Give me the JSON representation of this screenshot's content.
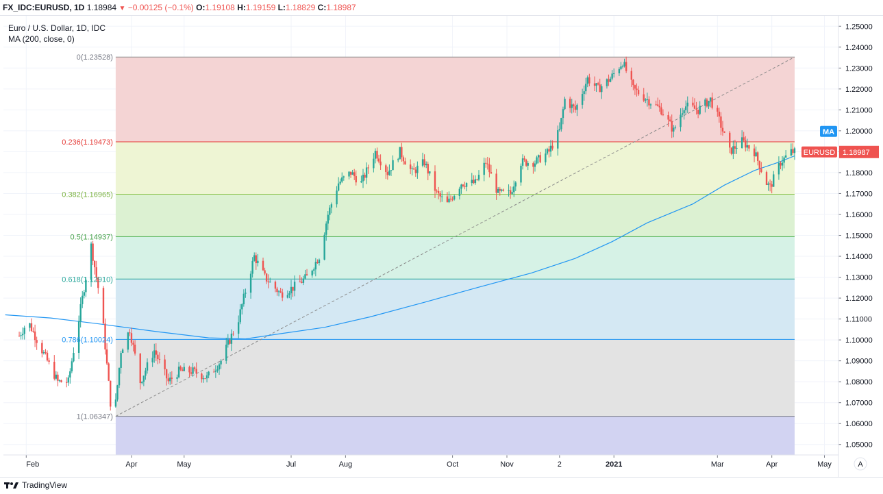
{
  "header": {
    "symbol": "FX_IDC:EURUSD, 1D",
    "last": "1.18984",
    "change_icon": "triangle-down-icon",
    "change": "−0.00125 (−0.1%)",
    "o_label": "O:",
    "o": "1.19108",
    "h_label": "H:",
    "h": "1.19159",
    "l_label": "L:",
    "l": "1.18829",
    "c_label": "C:",
    "c": "1.18987"
  },
  "legend": {
    "title": "Euro / U.S. Dollar, 1D, IDC",
    "indicator": "MA (200, close, 0)"
  },
  "footer": {
    "brand": "TradingView"
  },
  "scale_mode": "A",
  "colors": {
    "up": "#26a69a",
    "down": "#ef5350",
    "ma": "#2196f3",
    "fib_0": "#f4d4d4",
    "fib_236": "#eef5d4",
    "fib_382": "#dcf1d2",
    "fib_5": "#d6f2e6",
    "fib_618": "#d4e8f3",
    "fib_786": "#e3e3e3",
    "fib_1": "#d2d3f2"
  },
  "chart_data": {
    "type": "candlestick",
    "symbol": "EURUSD",
    "interval": "1D",
    "ylim": [
      1.045,
      1.255
    ],
    "y_ticks": [
      "1.05000",
      "1.06000",
      "1.07000",
      "1.08000",
      "1.09000",
      "1.10000",
      "1.11000",
      "1.12000",
      "1.13000",
      "1.14000",
      "1.15000",
      "1.16000",
      "1.17000",
      "1.18000",
      "1.19000",
      "1.20000",
      "1.21000",
      "1.22000",
      "1.23000",
      "1.24000",
      "1.25000"
    ],
    "x_ticks": [
      {
        "label": "Feb",
        "date": "2020-02-01"
      },
      {
        "label": "Apr",
        "date": "2020-04-01"
      },
      {
        "label": "May",
        "date": "2020-05-01"
      },
      {
        "label": "Jul",
        "date": "2020-07-01"
      },
      {
        "label": "Aug",
        "date": "2020-08-01"
      },
      {
        "label": "Oct",
        "date": "2020-10-01"
      },
      {
        "label": "Nov",
        "date": "2020-11-01"
      },
      {
        "label": "2",
        "date": "2020-12-01"
      },
      {
        "label": "2021",
        "date": "2021-01-01"
      },
      {
        "label": "Mar",
        "date": "2021-03-01"
      },
      {
        "label": "Apr",
        "date": "2021-04-01"
      },
      {
        "label": "May",
        "date": "2021-05-01"
      }
    ],
    "price_path": [
      [
        "2020-01-28",
        1.102
      ],
      [
        "2020-02-02",
        1.109
      ],
      [
        "2020-02-10",
        1.095
      ],
      [
        "2020-02-19",
        1.08
      ],
      [
        "2020-02-25",
        1.08
      ],
      [
        "2020-03-03",
        1.115
      ],
      [
        "2020-03-09",
        1.145
      ],
      [
        "2020-03-15",
        1.115
      ],
      [
        "2020-03-20",
        1.07
      ],
      [
        "2020-03-23",
        1.07
      ],
      [
        "2020-03-26",
        1.095
      ],
      [
        "2020-03-31",
        1.105
      ],
      [
        "2020-04-06",
        1.08
      ],
      [
        "2020-04-14",
        1.095
      ],
      [
        "2020-04-22",
        1.08
      ],
      [
        "2020-04-28",
        1.085
      ],
      [
        "2020-05-06",
        1.085
      ],
      [
        "2020-05-14",
        1.082
      ],
      [
        "2020-05-22",
        1.09
      ],
      [
        "2020-06-01",
        1.11
      ],
      [
        "2020-06-10",
        1.14
      ],
      [
        "2020-06-16",
        1.13
      ],
      [
        "2020-06-25",
        1.122
      ],
      [
        "2020-07-02",
        1.125
      ],
      [
        "2020-07-10",
        1.13
      ],
      [
        "2020-07-17",
        1.14
      ],
      [
        "2020-07-22",
        1.16
      ],
      [
        "2020-07-28",
        1.175
      ],
      [
        "2020-08-04",
        1.18
      ],
      [
        "2020-08-10",
        1.175
      ],
      [
        "2020-08-18",
        1.19
      ],
      [
        "2020-08-25",
        1.18
      ],
      [
        "2020-09-01",
        1.19
      ],
      [
        "2020-09-08",
        1.18
      ],
      [
        "2020-09-15",
        1.185
      ],
      [
        "2020-09-22",
        1.17
      ],
      [
        "2020-09-28",
        1.165
      ],
      [
        "2020-10-06",
        1.175
      ],
      [
        "2020-10-14",
        1.175
      ],
      [
        "2020-10-20",
        1.185
      ],
      [
        "2020-10-27",
        1.17
      ],
      [
        "2020-11-03",
        1.17
      ],
      [
        "2020-11-09",
        1.185
      ],
      [
        "2020-11-17",
        1.185
      ],
      [
        "2020-11-25",
        1.19
      ],
      [
        "2020-12-01",
        1.2
      ],
      [
        "2020-12-04",
        1.215
      ],
      [
        "2020-12-10",
        1.21
      ],
      [
        "2020-12-17",
        1.225
      ],
      [
        "2020-12-23",
        1.22
      ],
      [
        "2020-12-30",
        1.225
      ],
      [
        "2021-01-06",
        1.233
      ],
      [
        "2021-01-12",
        1.22
      ],
      [
        "2021-01-20",
        1.215
      ],
      [
        "2021-01-28",
        1.21
      ],
      [
        "2021-02-04",
        1.2
      ],
      [
        "2021-02-10",
        1.212
      ],
      [
        "2021-02-18",
        1.21
      ],
      [
        "2021-02-25",
        1.215
      ],
      [
        "2021-03-02",
        1.205
      ],
      [
        "2021-03-08",
        1.19
      ],
      [
        "2021-03-15",
        1.195
      ],
      [
        "2021-03-22",
        1.19
      ],
      [
        "2021-03-29",
        1.175
      ],
      [
        "2021-03-31",
        1.173
      ],
      [
        "2021-04-06",
        1.185
      ],
      [
        "2021-04-12",
        1.19
      ],
      [
        "2021-04-14",
        1.1898
      ]
    ],
    "ma_200": [
      [
        "2020-01-20",
        1.112
      ],
      [
        "2020-02-15",
        1.1105
      ],
      [
        "2020-03-15",
        1.1075
      ],
      [
        "2020-04-15",
        1.104
      ],
      [
        "2020-05-15",
        1.101
      ],
      [
        "2020-06-05",
        1.1005
      ],
      [
        "2020-06-25",
        1.103
      ],
      [
        "2020-07-20",
        1.106
      ],
      [
        "2020-08-15",
        1.111
      ],
      [
        "2020-09-15",
        1.118
      ],
      [
        "2020-10-15",
        1.125
      ],
      [
        "2020-11-15",
        1.132
      ],
      [
        "2020-12-10",
        1.139
      ],
      [
        "2020-12-31",
        1.147
      ],
      [
        "2021-01-20",
        1.156
      ],
      [
        "2021-02-15",
        1.165
      ],
      [
        "2021-03-05",
        1.174
      ],
      [
        "2021-03-22",
        1.181
      ],
      [
        "2021-04-05",
        1.185
      ],
      [
        "2021-04-14",
        1.188
      ]
    ],
    "fibonacci": {
      "from": {
        "date": "2020-03-23",
        "price": 1.06347
      },
      "to": {
        "date": "2021-01-06",
        "price": 1.23528
      },
      "trend_end": {
        "date": "2021-04-14",
        "price": 1.23528
      },
      "levels": [
        {
          "label": "0(1.23528)",
          "price": 1.23528,
          "fill": "#f4d4d4",
          "line": "#888888",
          "text": "#787b86"
        },
        {
          "label": "0.236(1.19473)",
          "price": 1.19473,
          "fill": "#eef5d4",
          "line": "#e53935",
          "text": "#e53935"
        },
        {
          "label": "0.382(1.16965)",
          "price": 1.16965,
          "fill": "#dcf1d2",
          "line": "#8bc34a",
          "text": "#7cb342"
        },
        {
          "label": "0.5(1.14937)",
          "price": 1.14937,
          "fill": "#d6f2e6",
          "line": "#4caf50",
          "text": "#43a047"
        },
        {
          "label": "0.618(1.12910)",
          "price": 1.1291,
          "fill": "#d4e8f3",
          "line": "#26a69a",
          "text": "#26a69a"
        },
        {
          "label": "0.786(1.10024)",
          "price": 1.10024,
          "fill": "#e3e3e3",
          "line": "#2196f3",
          "text": "#2196f3"
        },
        {
          "label": "1(1.06347)",
          "price": 1.06347,
          "fill": "#d2d3f2",
          "line": "#787b86",
          "text": "#787b86"
        }
      ]
    },
    "price_labels": [
      {
        "text": "MA",
        "price": 1.1997,
        "color": "#2196f3"
      },
      {
        "text": "EURUSD",
        "price": 1.18987,
        "color": "#ef5350"
      },
      {
        "text": "1.18987",
        "price": 1.18987,
        "color": "#ef5350"
      }
    ]
  }
}
